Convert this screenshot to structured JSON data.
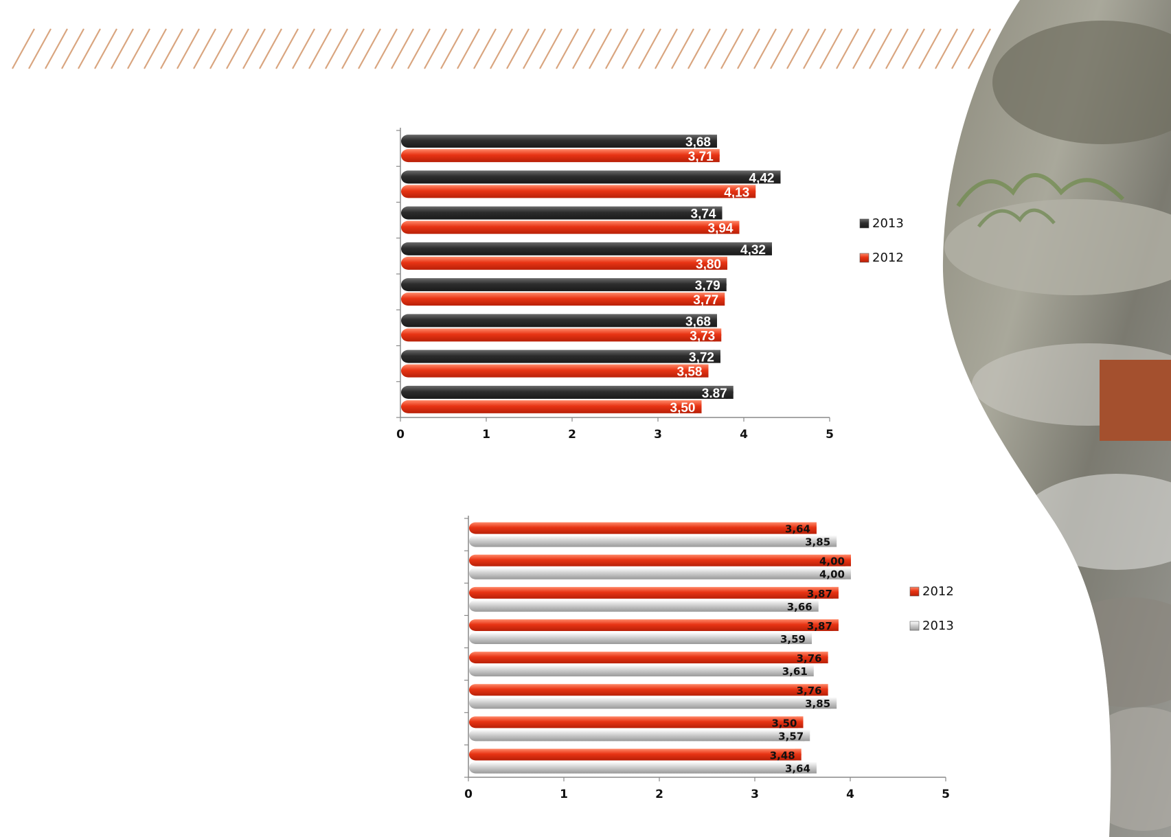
{
  "colors": {
    "stripe": "#d9a57f",
    "accent_box": "#a4502e",
    "dark": "#3a3a3a",
    "red": "#e83414",
    "light": "#d4d4d4"
  },
  "chart_data": [
    {
      "type": "bar",
      "orientation": "horizontal",
      "categories": [
        "",
        "",
        "",
        "",
        "",
        "",
        "",
        ""
      ],
      "xlim": [
        0,
        5
      ],
      "ticks": [
        "0",
        "1",
        "2",
        "3",
        "4",
        "5"
      ],
      "series": [
        {
          "name": "2013",
          "color": "dark",
          "values": [
            3.68,
            4.42,
            3.74,
            4.32,
            3.79,
            3.68,
            3.72,
            3.87
          ],
          "labels": [
            "3,68",
            "4,42",
            "3,74",
            "4,32",
            "3,79",
            "3,68",
            "3,72",
            "3.87"
          ]
        },
        {
          "name": "2012",
          "color": "red",
          "values": [
            3.71,
            4.13,
            3.94,
            3.8,
            3.77,
            3.73,
            3.58,
            3.5
          ],
          "labels": [
            "3,71",
            "4,13",
            "3,94",
            "3,80",
            "3,77",
            "3,73",
            "3,58",
            "3,50"
          ]
        }
      ],
      "legend": [
        {
          "label": "2013",
          "color": "dark"
        },
        {
          "label": "2012",
          "color": "red"
        }
      ],
      "legend_position": "right",
      "grid": false
    },
    {
      "type": "bar",
      "orientation": "horizontal",
      "categories": [
        "",
        "",
        "",
        "",
        "",
        "",
        "",
        ""
      ],
      "xlim": [
        0,
        5
      ],
      "ticks": [
        "0",
        "1",
        "2",
        "3",
        "4",
        "5"
      ],
      "series": [
        {
          "name": "2012",
          "color": "red",
          "values": [
            3.64,
            4.0,
            3.87,
            3.87,
            3.76,
            3.76,
            3.5,
            3.48
          ],
          "labels": [
            "3,64",
            "4,00",
            "3,87",
            "3,87",
            "3,76",
            "3,76",
            "3,50",
            "3,48"
          ]
        },
        {
          "name": "2013",
          "color": "light",
          "values": [
            3.85,
            4.0,
            3.66,
            3.59,
            3.61,
            3.85,
            3.57,
            3.64
          ],
          "labels": [
            "3,85",
            "4,00",
            "3,66",
            "3,59",
            "3,61",
            "3,85",
            "3,57",
            "3,64"
          ]
        }
      ],
      "legend": [
        {
          "label": "2012",
          "color": "red"
        },
        {
          "label": "2013",
          "color": "light"
        }
      ],
      "legend_position": "right",
      "grid": false
    }
  ]
}
